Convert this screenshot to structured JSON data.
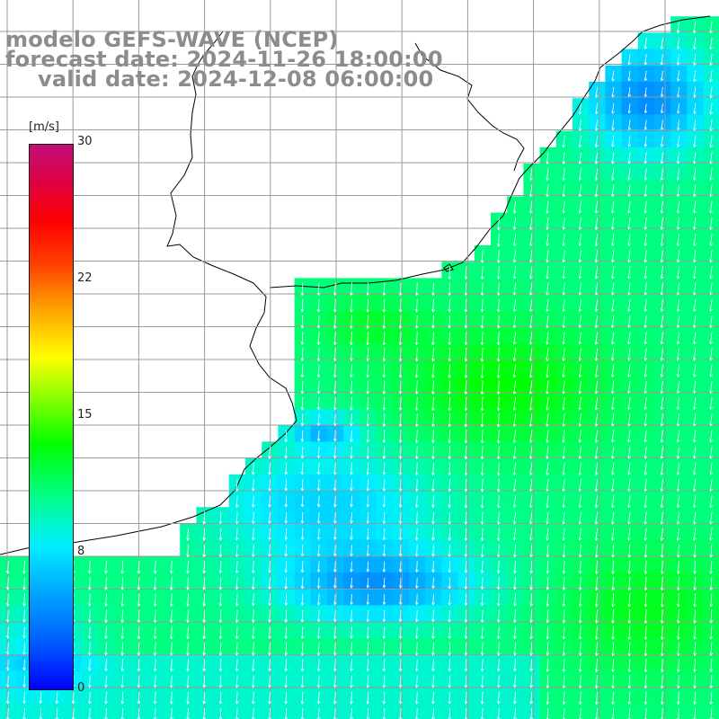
{
  "title": {
    "model": "modelo GEFS-WAVE (NCEP)",
    "forecast": "forecast date: 2024-11-26 18:00:00",
    "valid": "valid date: 2024-12-08 06:00:00"
  },
  "colorbar": {
    "unit": "[m/s]",
    "ticks": [
      "30",
      "22",
      "15",
      "8",
      "0"
    ],
    "tick_values": [
      30,
      22,
      15,
      8,
      0
    ],
    "range": [
      0,
      30
    ],
    "colors": [
      "#0000ff",
      "#00a8ff",
      "#00f0ff",
      "#00ff00",
      "#ffff00",
      "#ff0000",
      "#c0107a"
    ]
  },
  "map": {
    "variable": "wind speed and direction",
    "land_color": "#ffffff",
    "coastline_color": "#000000",
    "grid_color": "#808080"
  }
}
